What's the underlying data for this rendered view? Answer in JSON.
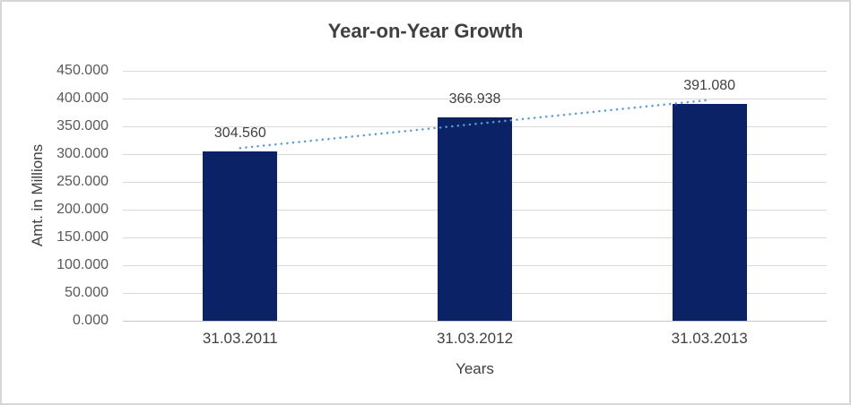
{
  "chart_data": {
    "type": "bar",
    "title": "Year-on-Year Growth",
    "xlabel": "Years",
    "ylabel": "Amt. in Millions",
    "categories": [
      "31.03.2011",
      "31.03.2012",
      "31.03.2013"
    ],
    "values": [
      304.56,
      366.938,
      391.08
    ],
    "data_labels": [
      "304.560",
      "366.938",
      "391.080"
    ],
    "ylim": [
      0,
      450
    ],
    "ytick_step": 50,
    "ytick_labels": [
      "0.000",
      "50.000",
      "100.000",
      "150.000",
      "200.000",
      "250.000",
      "300.000",
      "350.000",
      "400.000",
      "450.000"
    ],
    "grid": true,
    "legend": "none",
    "trendline": {
      "type": "linear",
      "style": "dotted"
    },
    "colors": {
      "bar": "#0b2366",
      "trendline": "#5b9bd5",
      "gridline": "#d9d9d9",
      "axis_line": "#c8c8c8",
      "title_text": "#3f3f3f",
      "ytick_text": "#595959",
      "xtick_text": "#404040",
      "border": "#d6d6d6",
      "background": "#ffffff"
    }
  }
}
